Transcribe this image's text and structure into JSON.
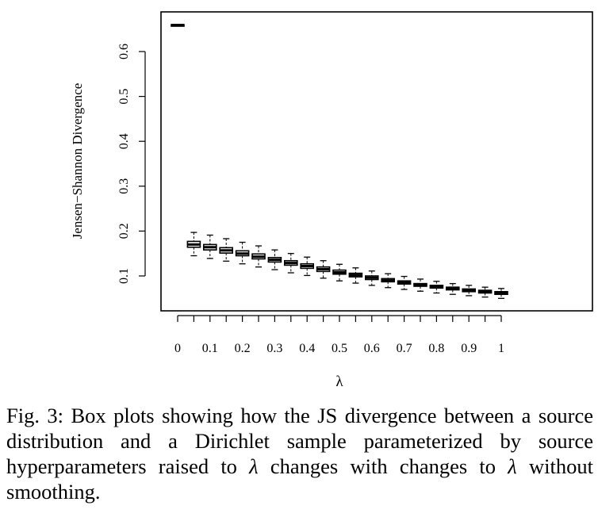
{
  "chart_data": {
    "type": "box",
    "xlabel": "λ",
    "ylabel": "Jensen−Shannon Divergence",
    "ylim": [
      0.03,
      0.7
    ],
    "y_ticks": [
      0.1,
      0.2,
      0.3,
      0.4,
      0.5,
      0.6
    ],
    "y_tick_labels": [
      "0.1",
      "0.2",
      "0.3",
      "0.4",
      "0.5",
      "0.6"
    ],
    "x_ticks": [
      0,
      0.1,
      0.2,
      0.3,
      0.4,
      0.5,
      0.6,
      0.7,
      0.8,
      0.9,
      1
    ],
    "x_tick_labels": [
      "0",
      "0.1",
      "0.2",
      "0.3",
      "0.4",
      "0.5",
      "0.6",
      "0.7",
      "0.8",
      "0.9",
      "1"
    ],
    "grid": false,
    "boxes": [
      {
        "x": 0,
        "whisker_low": 0.658,
        "q1": 0.658,
        "median": 0.659,
        "q3": 0.66,
        "whisker_high": 0.66
      },
      {
        "x": 0.05,
        "whisker_low": 0.145,
        "q1": 0.164,
        "median": 0.17,
        "q3": 0.177,
        "whisker_high": 0.197
      },
      {
        "x": 0.1,
        "whisker_low": 0.139,
        "q1": 0.158,
        "median": 0.164,
        "q3": 0.17,
        "whisker_high": 0.191
      },
      {
        "x": 0.15,
        "whisker_low": 0.133,
        "q1": 0.151,
        "median": 0.157,
        "q3": 0.163,
        "whisker_high": 0.183
      },
      {
        "x": 0.2,
        "whisker_low": 0.127,
        "q1": 0.145,
        "median": 0.15,
        "q3": 0.156,
        "whisker_high": 0.175
      },
      {
        "x": 0.25,
        "whisker_low": 0.12,
        "q1": 0.138,
        "median": 0.143,
        "q3": 0.149,
        "whisker_high": 0.167
      },
      {
        "x": 0.3,
        "whisker_low": 0.114,
        "q1": 0.131,
        "median": 0.136,
        "q3": 0.141,
        "whisker_high": 0.158
      },
      {
        "x": 0.35,
        "whisker_low": 0.107,
        "q1": 0.124,
        "median": 0.129,
        "q3": 0.134,
        "whisker_high": 0.15
      },
      {
        "x": 0.4,
        "whisker_low": 0.101,
        "q1": 0.117,
        "median": 0.122,
        "q3": 0.127,
        "whisker_high": 0.142
      },
      {
        "x": 0.45,
        "whisker_low": 0.095,
        "q1": 0.11,
        "median": 0.115,
        "q3": 0.12,
        "whisker_high": 0.134
      },
      {
        "x": 0.5,
        "whisker_low": 0.089,
        "q1": 0.104,
        "median": 0.108,
        "q3": 0.113,
        "whisker_high": 0.126
      },
      {
        "x": 0.55,
        "whisker_low": 0.084,
        "q1": 0.098,
        "median": 0.102,
        "q3": 0.106,
        "whisker_high": 0.118
      },
      {
        "x": 0.6,
        "whisker_low": 0.079,
        "q1": 0.092,
        "median": 0.096,
        "q3": 0.1,
        "whisker_high": 0.111
      },
      {
        "x": 0.65,
        "whisker_low": 0.074,
        "q1": 0.087,
        "median": 0.09,
        "q3": 0.094,
        "whisker_high": 0.105
      },
      {
        "x": 0.7,
        "whisker_low": 0.07,
        "q1": 0.082,
        "median": 0.085,
        "q3": 0.089,
        "whisker_high": 0.099
      },
      {
        "x": 0.75,
        "whisker_low": 0.066,
        "q1": 0.077,
        "median": 0.08,
        "q3": 0.083,
        "whisker_high": 0.093
      },
      {
        "x": 0.8,
        "whisker_low": 0.062,
        "q1": 0.073,
        "median": 0.076,
        "q3": 0.079,
        "whisker_high": 0.088
      },
      {
        "x": 0.85,
        "whisker_low": 0.059,
        "q1": 0.069,
        "median": 0.072,
        "q3": 0.075,
        "whisker_high": 0.083
      },
      {
        "x": 0.9,
        "whisker_low": 0.056,
        "q1": 0.065,
        "median": 0.068,
        "q3": 0.071,
        "whisker_high": 0.079
      },
      {
        "x": 0.95,
        "whisker_low": 0.053,
        "q1": 0.062,
        "median": 0.065,
        "q3": 0.068,
        "whisker_high": 0.075
      },
      {
        "x": 1,
        "whisker_low": 0.05,
        "q1": 0.059,
        "median": 0.062,
        "q3": 0.065,
        "whisker_high": 0.072
      }
    ]
  },
  "caption": {
    "part1": "Fig. 3: Box plots showing how the JS divergence between a source distribution and a Dirichlet sample parameterized by source hyperparameters raised to ",
    "lambda1": "λ",
    "part2": " changes with changes to ",
    "lambda2": "λ",
    "part3": " without smoothing."
  }
}
